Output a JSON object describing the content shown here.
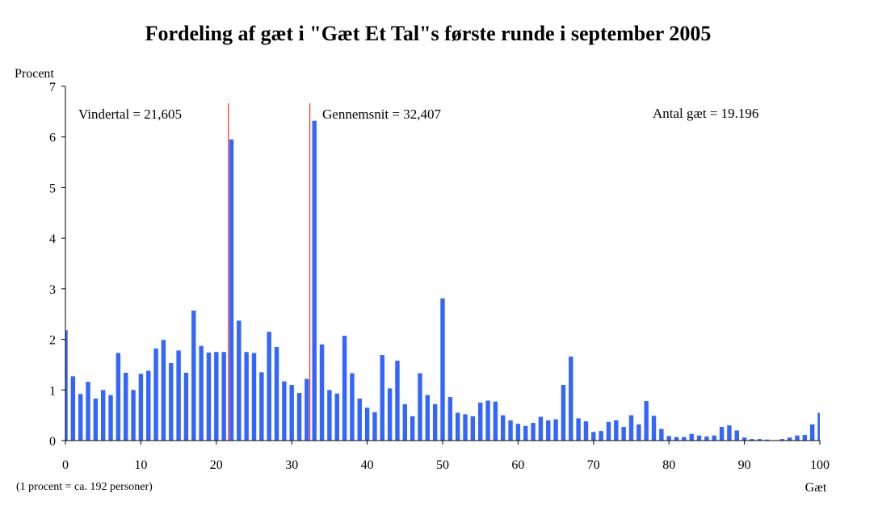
{
  "chart_data": {
    "type": "bar",
    "title": "Fordeling af gæt i \"Gæt Et Tal\"s første runde i september 2005",
    "ylabel": "Procent",
    "xlabel": "Gæt",
    "footnote": "(1 procent = ca. 192 personer)",
    "xlim": [
      0,
      100
    ],
    "ylim": [
      0,
      7
    ],
    "x_ticks": [
      0,
      10,
      20,
      30,
      40,
      50,
      60,
      70,
      80,
      90,
      100
    ],
    "y_ticks": [
      0,
      1,
      2,
      3,
      4,
      5,
      6,
      7
    ],
    "bar_color": "#3366ff",
    "ref_line_color": "#ff0000",
    "annotations": {
      "winner": "Vindertal = 21,605",
      "mean": "Gennemsnit = 32,407",
      "count": "Antal gæt = 19.196"
    },
    "reference_lines": [
      {
        "name": "Vindertal",
        "x": 21.605
      },
      {
        "name": "Gennemsnit",
        "x": 32.407
      }
    ],
    "x": [
      0,
      1,
      2,
      3,
      4,
      5,
      6,
      7,
      8,
      9,
      10,
      11,
      12,
      13,
      14,
      15,
      16,
      17,
      18,
      19,
      20,
      21,
      22,
      23,
      24,
      25,
      26,
      27,
      28,
      29,
      30,
      31,
      32,
      33,
      34,
      35,
      36,
      37,
      38,
      39,
      40,
      41,
      42,
      43,
      44,
      45,
      46,
      47,
      48,
      49,
      50,
      51,
      52,
      53,
      54,
      55,
      56,
      57,
      58,
      59,
      60,
      61,
      62,
      63,
      64,
      65,
      66,
      67,
      68,
      69,
      70,
      71,
      72,
      73,
      74,
      75,
      76,
      77,
      78,
      79,
      80,
      81,
      82,
      83,
      84,
      85,
      86,
      87,
      88,
      89,
      90,
      91,
      92,
      93,
      94,
      95,
      96,
      97,
      98,
      99,
      100
    ],
    "values": [
      2.18,
      1.27,
      0.92,
      1.16,
      0.83,
      1.0,
      0.9,
      1.73,
      1.34,
      1.0,
      1.32,
      1.38,
      1.82,
      1.99,
      1.53,
      1.78,
      1.34,
      2.57,
      1.87,
      1.74,
      1.75,
      1.75,
      5.95,
      2.37,
      1.75,
      1.73,
      1.35,
      2.15,
      1.85,
      1.17,
      1.1,
      0.94,
      1.22,
      6.32,
      1.9,
      1.0,
      0.93,
      2.07,
      1.33,
      0.83,
      0.65,
      0.56,
      1.69,
      1.03,
      1.58,
      0.72,
      0.48,
      1.33,
      0.9,
      0.72,
      2.81,
      0.86,
      0.55,
      0.52,
      0.48,
      0.75,
      0.79,
      0.77,
      0.5,
      0.4,
      0.33,
      0.29,
      0.35,
      0.47,
      0.4,
      0.42,
      1.1,
      1.66,
      0.44,
      0.38,
      0.17,
      0.19,
      0.37,
      0.4,
      0.27,
      0.5,
      0.32,
      0.78,
      0.49,
      0.23,
      0.09,
      0.07,
      0.07,
      0.13,
      0.1,
      0.08,
      0.1,
      0.27,
      0.3,
      0.2,
      0.06,
      0.03,
      0.03,
      0.02,
      0.0,
      0.03,
      0.06,
      0.1,
      0.11,
      0.32,
      0.55
    ]
  }
}
